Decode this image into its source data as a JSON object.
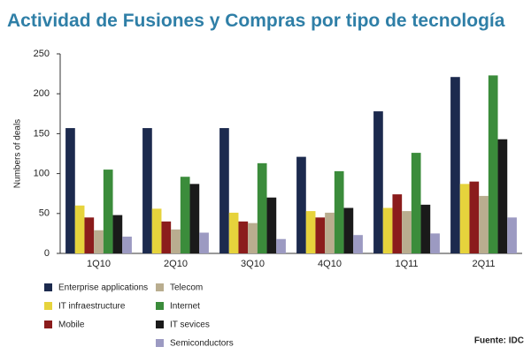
{
  "chart_data": {
    "type": "bar",
    "title": "Actividad de Fusiones y Compras por tipo de tecnología",
    "y_label": "Numbers of deals",
    "source": "Fuente: IDC",
    "categories": [
      "1Q10",
      "2Q10",
      "3Q10",
      "4Q10",
      "1Q11",
      "2Q11"
    ],
    "series": [
      {
        "name": "Enterprise applications",
        "color": "#1c2a4e",
        "values": [
          157,
          157,
          157,
          121,
          178,
          221
        ]
      },
      {
        "name": "IT infraestructure",
        "color": "#e6d33c",
        "values": [
          60,
          56,
          51,
          53,
          57,
          87
        ]
      },
      {
        "name": "Mobile",
        "color": "#8b1c1c",
        "values": [
          45,
          40,
          40,
          45,
          74,
          90
        ]
      },
      {
        "name": "Telecom",
        "color": "#b9ad8f",
        "values": [
          29,
          30,
          38,
          51,
          53,
          72
        ]
      },
      {
        "name": "Internet",
        "color": "#3b8c3b",
        "values": [
          105,
          96,
          113,
          103,
          126,
          223
        ]
      },
      {
        "name": "IT sevices",
        "color": "#1a1a1a",
        "values": [
          48,
          87,
          70,
          57,
          61,
          143
        ]
      },
      {
        "name": "Semiconductors",
        "color": "#9c9ac2",
        "values": [
          21,
          26,
          18,
          23,
          25,
          45
        ]
      }
    ],
    "ylim": [
      0,
      250
    ],
    "yticks": [
      0,
      50,
      100,
      150,
      200,
      250
    ],
    "grid": false
  }
}
